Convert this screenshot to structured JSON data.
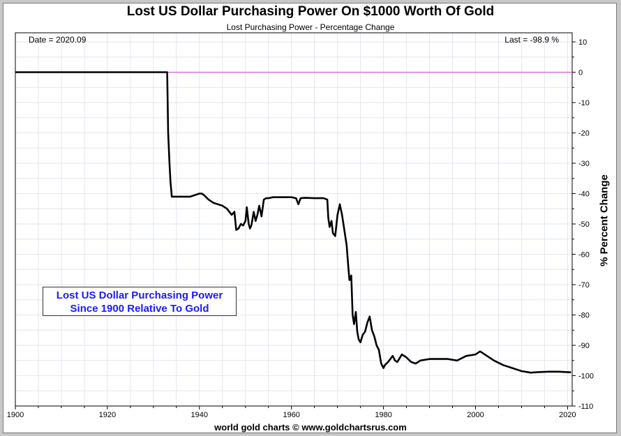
{
  "chart_data": {
    "type": "line",
    "title": "Lost US Dollar Purchasing Power On $1000 Worth Of Gold",
    "subtitle": "Lost Purchasing Power - Percentage Change",
    "date_text": "Date = 2020.09",
    "last_text": "Last = -98.9 %",
    "ylabel": "% Percent Change",
    "annotation_lines": [
      "Lost US Dollar Purchasing Power",
      "Since 1900 Relative To Gold"
    ],
    "footer": "world gold charts © www.goldchartsrus.com",
    "xlim": [
      1900,
      2021
    ],
    "ylim": [
      -110,
      13
    ],
    "x_ticks": [
      1900,
      1920,
      1940,
      1960,
      1980,
      2000,
      2020
    ],
    "y_ticks": [
      10,
      0,
      -10,
      -20,
      -30,
      -40,
      -50,
      -60,
      -70,
      -80,
      -90,
      -100,
      -110
    ],
    "grid": true,
    "colors": {
      "line": "#000000",
      "zero_line": "#cc44cc",
      "grid": "#e2e6ee",
      "annotation": "#1a1aff"
    },
    "series": [
      {
        "x": [
          1900,
          1933.0,
          1933.2,
          1933.5,
          1933.7,
          1934.0,
          1934.5,
          1935,
          1938,
          1940,
          1940.5,
          1941,
          1942,
          1943,
          1944,
          1945,
          1946,
          1947,
          1947.6,
          1948,
          1948.5,
          1949,
          1949.5,
          1950,
          1950.3,
          1950.7,
          1951,
          1951.3,
          1951.8,
          1952.2,
          1952.6,
          1953,
          1953.5,
          1954,
          1954.5,
          1955,
          1956,
          1958,
          1960,
          1961,
          1961.5,
          1962,
          1963,
          1965,
          1967,
          1967.8,
          1968,
          1968.3,
          1968.7,
          1969,
          1969.5,
          1970,
          1970.5,
          1971,
          1971.5,
          1972,
          1972.3,
          1972.6,
          1973,
          1973.3,
          1973.6,
          1974,
          1974.3,
          1974.6,
          1975,
          1975.5,
          1976,
          1976.5,
          1977,
          1977.5,
          1978,
          1978.5,
          1979,
          1979.5,
          1980,
          1980.3,
          1981,
          1982,
          1982.5,
          1983,
          1984,
          1985,
          1986,
          1987,
          1988,
          1990,
          1992,
          1994,
          1996,
          1998,
          2000,
          2001,
          2002,
          2004,
          2006,
          2008,
          2010,
          2012,
          2014,
          2016,
          2018,
          2020.75
        ],
        "y": [
          0,
          0,
          -20,
          -30,
          -36,
          -41,
          -41,
          -41,
          -41,
          -40,
          -40,
          -40.5,
          -42,
          -43,
          -43.5,
          -44,
          -45,
          -47,
          -46,
          -52,
          -51.5,
          -50,
          -50.5,
          -49,
          -44.5,
          -50,
          -51.5,
          -50.5,
          -46,
          -49,
          -47,
          -44,
          -47.5,
          -42,
          -41.5,
          -41.5,
          -41.2,
          -41.2,
          -41.2,
          -41.5,
          -43.5,
          -41.5,
          -41.4,
          -41.5,
          -41.5,
          -42,
          -48,
          -51,
          -49,
          -53,
          -54,
          -47,
          -43.5,
          -47,
          -52,
          -57,
          -63,
          -68.5,
          -67,
          -80,
          -83,
          -79,
          -85.5,
          -88,
          -89,
          -86.5,
          -85.5,
          -82.5,
          -80.5,
          -85,
          -87,
          -90,
          -91.5,
          -96,
          -97.5,
          -96.5,
          -95.5,
          -93.5,
          -95,
          -95.5,
          -93,
          -94,
          -95.5,
          -96,
          -95,
          -94.5,
          -94.5,
          -94.5,
          -95,
          -93.5,
          -93,
          -92,
          -93,
          -95,
          -96.5,
          -97.5,
          -98.5,
          -99,
          -98.8,
          -98.7,
          -98.7,
          -98.9
        ]
      }
    ]
  }
}
